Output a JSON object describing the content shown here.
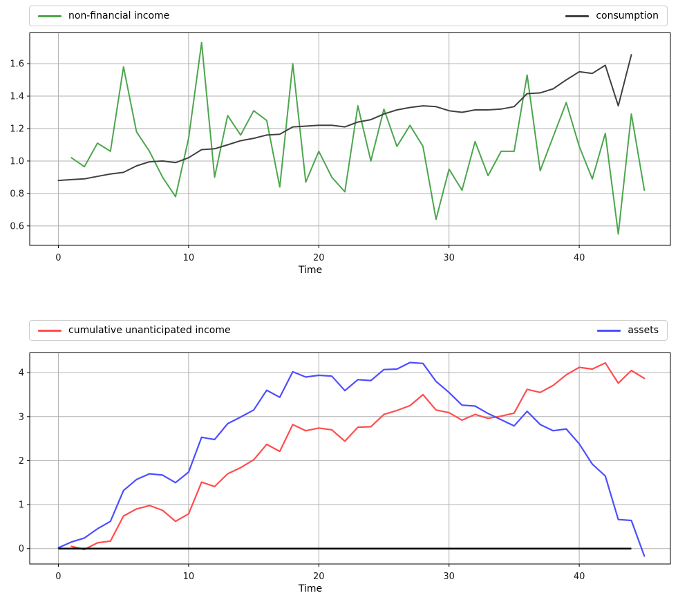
{
  "figure": {
    "background": "#ffffff"
  },
  "axis": {
    "frame_color": "#000000",
    "grid_color": "#b0b0b0",
    "tick_color": "#000000",
    "tick_label_color": "#1a1a1a"
  },
  "chart_data": [
    {
      "type": "line",
      "title": "",
      "xlabel": "Time",
      "ylabel": "",
      "grid": true,
      "legend_position": "top-expanded-2col",
      "xlim": [
        -2.2,
        47.0
      ],
      "ylim": [
        0.48,
        1.79
      ],
      "xticks": [
        0,
        10,
        20,
        30,
        40
      ],
      "xtick_labels": [
        "0",
        "10",
        "20",
        "30",
        "40"
      ],
      "yticks": [
        0.6,
        0.8,
        1.0,
        1.2,
        1.4,
        1.6
      ],
      "ytick_labels": [
        "0.6",
        "0.8",
        "1.0",
        "1.2",
        "1.4",
        "1.6"
      ],
      "series": [
        {
          "name": "non-financial income",
          "color": "#4CA64C",
          "line_width": 2,
          "x_start": 1,
          "values": [
            1.02,
            0.965,
            1.11,
            1.06,
            1.58,
            1.18,
            1.06,
            0.9,
            0.78,
            1.14,
            1.73,
            0.9,
            1.28,
            1.16,
            1.31,
            1.25,
            0.84,
            1.6,
            0.87,
            1.06,
            0.9,
            0.81,
            1.34,
            1.0,
            1.32,
            1.09,
            1.22,
            1.09,
            0.64,
            0.95,
            0.82,
            1.12,
            0.91,
            1.06,
            1.06,
            1.53,
            0.94,
            1.15,
            1.36,
            1.09,
            0.89,
            1.17,
            0.55,
            1.29,
            0.82
          ]
        },
        {
          "name": "consumption",
          "color": "#404040",
          "line_width": 2,
          "x_start": 0,
          "values": [
            0.88,
            0.885,
            0.89,
            0.905,
            0.92,
            0.93,
            0.97,
            0.995,
            1.0,
            0.99,
            1.02,
            1.07,
            1.075,
            1.1,
            1.125,
            1.14,
            1.16,
            1.165,
            1.21,
            1.215,
            1.22,
            1.22,
            1.21,
            1.24,
            1.255,
            1.29,
            1.315,
            1.33,
            1.34,
            1.335,
            1.31,
            1.3,
            1.315,
            1.315,
            1.32,
            1.335,
            1.415,
            1.42,
            1.445,
            1.5,
            1.55,
            1.54,
            1.59,
            1.34,
            1.655
          ]
        }
      ]
    },
    {
      "type": "line",
      "title": "",
      "xlabel": "Time",
      "ylabel": "",
      "grid": true,
      "legend_position": "top-expanded-2col",
      "xlim": [
        -2.2,
        47.0
      ],
      "ylim": [
        -0.35,
        4.45
      ],
      "xticks": [
        0,
        10,
        20,
        30,
        40
      ],
      "xtick_labels": [
        "0",
        "10",
        "20",
        "30",
        "40"
      ],
      "yticks": [
        0,
        1,
        2,
        3,
        4
      ],
      "ytick_labels": [
        "0",
        "1",
        "2",
        "3",
        "4"
      ],
      "baseline": {
        "y": 0,
        "x_start": 0,
        "x_end": 44,
        "color": "#000000",
        "line_width": 2.5
      },
      "series": [
        {
          "name": "cumulative unanticipated income",
          "color": "#FF4D4D",
          "line_width": 2.2,
          "x_start": 1,
          "values": [
            0.05,
            -0.02,
            0.13,
            0.17,
            0.74,
            0.9,
            0.98,
            0.87,
            0.62,
            0.79,
            1.51,
            1.41,
            1.7,
            1.84,
            2.02,
            2.37,
            2.21,
            2.82,
            2.68,
            2.74,
            2.7,
            2.44,
            2.76,
            2.77,
            3.05,
            3.14,
            3.25,
            3.5,
            3.15,
            3.09,
            2.92,
            3.05,
            2.96,
            3.01,
            3.08,
            3.62,
            3.55,
            3.71,
            3.95,
            4.12,
            4.08,
            4.22,
            3.76,
            4.05,
            3.87
          ]
        },
        {
          "name": "assets",
          "color": "#4D4DFF",
          "line_width": 2.2,
          "x_start": 0,
          "values": [
            0.02,
            0.15,
            0.24,
            0.45,
            0.62,
            1.32,
            1.57,
            1.7,
            1.67,
            1.5,
            1.74,
            2.53,
            2.48,
            2.84,
            2.99,
            3.15,
            3.6,
            3.44,
            4.02,
            3.9,
            3.94,
            3.92,
            3.59,
            3.84,
            3.82,
            4.07,
            4.08,
            4.23,
            4.21,
            3.8,
            3.55,
            3.26,
            3.24,
            3.07,
            2.93,
            2.79,
            3.12,
            2.82,
            2.68,
            2.72,
            2.38,
            1.92,
            1.65,
            0.66,
            0.64,
            -0.17
          ]
        }
      ]
    }
  ]
}
